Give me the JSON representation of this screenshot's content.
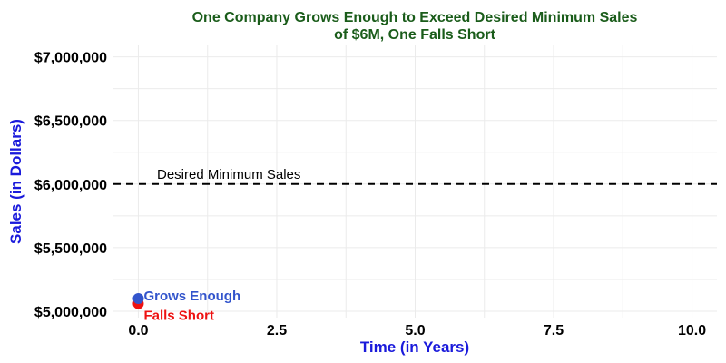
{
  "chart_data": {
    "type": "scatter",
    "title_lines": [
      "One Company Grows Enough to Exceed Desired Minimum Sales",
      "of $6M, One Falls Short"
    ],
    "xlabel": "Time (in Years)",
    "ylabel": "Sales (in Dollars)",
    "xlim": [
      -0.45,
      10.45
    ],
    "ylim": [
      4950000,
      7090000
    ],
    "x_ticks": [
      0,
      2.5,
      5,
      7.5,
      10
    ],
    "x_tick_labels": [
      "0.0",
      "2.5",
      "5.0",
      "7.5",
      "10.0"
    ],
    "y_ticks": [
      5000000,
      5500000,
      6000000,
      6500000,
      7000000
    ],
    "y_tick_labels": [
      "$5,000,000",
      "$5,500,000",
      "$6,000,000",
      "$6,500,000",
      "$7,000,000"
    ],
    "grid": true,
    "reference_line": {
      "y": 6000000,
      "style": "dashed",
      "label": "Desired Minimum Sales"
    },
    "series": [
      {
        "name": "Grows Enough",
        "color": "#3355cc",
        "points": [
          {
            "x": 0,
            "y": 5100000
          }
        ]
      },
      {
        "name": "Falls Short",
        "color": "#ee1111",
        "points": [
          {
            "x": 0,
            "y": 5060000
          }
        ]
      }
    ],
    "colors": {
      "title": "#1a5c1a",
      "axis_title": "#1a1adb",
      "grid": "#ebebeb"
    }
  }
}
